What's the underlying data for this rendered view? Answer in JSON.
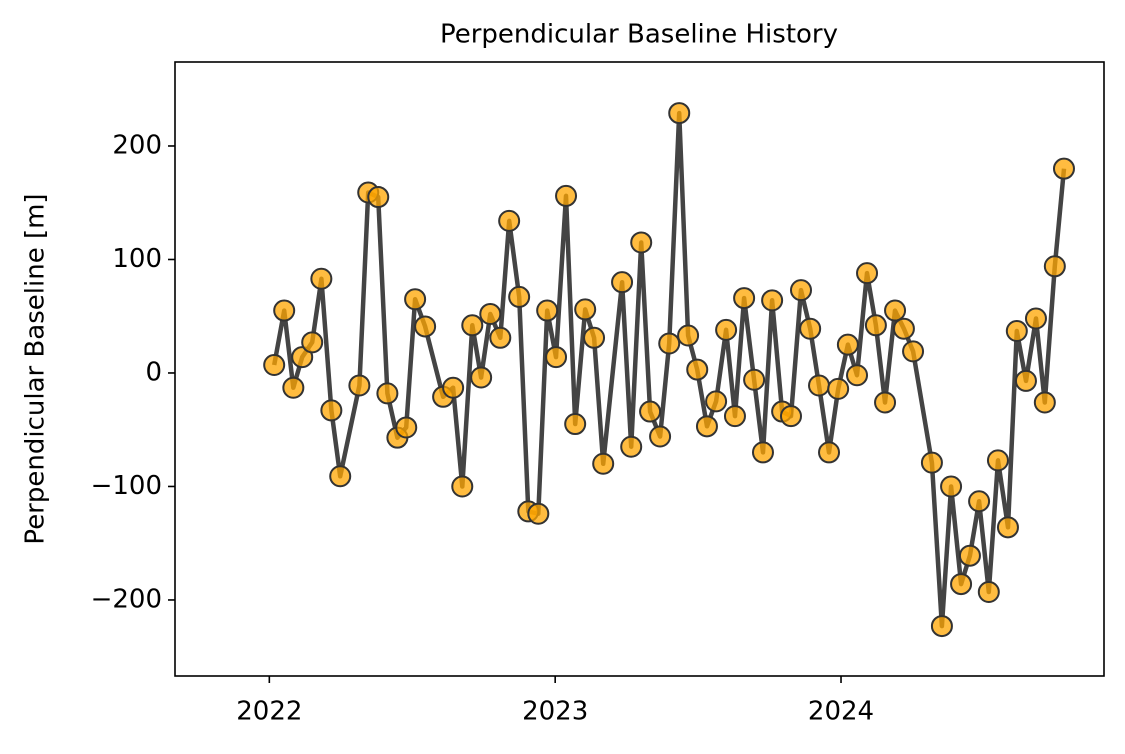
{
  "chart_data": {
    "type": "line",
    "title": "Perpendicular Baseline History",
    "ylabel": "Perpendicular Baseline [m]",
    "x": [
      2022.017,
      2022.052,
      2022.084,
      2022.115,
      2022.15,
      2022.182,
      2022.217,
      2022.248,
      2022.315,
      2022.346,
      2022.381,
      2022.413,
      2022.448,
      2022.479,
      2022.51,
      2022.545,
      2022.608,
      2022.643,
      2022.675,
      2022.71,
      2022.741,
      2022.773,
      2022.808,
      2022.839,
      2022.874,
      2022.906,
      2022.941,
      2022.972,
      2023.003,
      2023.038,
      2023.07,
      2023.105,
      2023.136,
      2023.168,
      2023.234,
      2023.266,
      2023.301,
      2023.332,
      2023.367,
      2023.399,
      2023.434,
      2023.465,
      2023.497,
      2023.531,
      2023.563,
      2023.598,
      2023.629,
      2023.661,
      2023.696,
      2023.727,
      2023.759,
      2023.794,
      2023.825,
      2023.86,
      2023.892,
      2023.923,
      2023.958,
      2023.99,
      2024.024,
      2024.056,
      2024.091,
      2024.122,
      2024.154,
      2024.189,
      2024.22,
      2024.252,
      2024.318,
      2024.353,
      2024.385,
      2024.42,
      2024.451,
      2024.483,
      2024.517,
      2024.549,
      2024.584,
      2024.615,
      2024.647,
      2024.682,
      2024.713,
      2024.748,
      2024.78
    ],
    "values": [
      7,
      55,
      -13,
      14,
      27,
      83,
      -33,
      -91,
      -11,
      159,
      155,
      -18,
      -57,
      -48,
      65,
      41,
      -21,
      -13,
      -100,
      42,
      -4,
      52,
      31,
      134,
      67,
      -122,
      -124,
      55,
      14,
      156,
      -45,
      56,
      31,
      -80,
      80,
      -65,
      115,
      -34,
      -56,
      26,
      229,
      33,
      3,
      -47,
      -25,
      38,
      -38,
      66,
      -6,
      -70,
      64,
      -34,
      -38,
      73,
      39,
      -11,
      -70,
      -14,
      25,
      -2,
      88,
      42,
      -26,
      55,
      39,
      19,
      -79,
      -223,
      -100,
      -186,
      -161,
      -113,
      -193,
      -77,
      -136,
      37,
      -7,
      48,
      -26,
      94,
      180
    ],
    "color": "#444444",
    "marker_color": "#ffa500",
    "xlim": [
      2021.67,
      2024.92
    ],
    "xticks": [
      2022,
      2023,
      2024
    ],
    "ylim": [
      -267,
      274
    ],
    "yticks": [
      {
        "value": -200,
        "label": "−200"
      },
      {
        "value": -100,
        "label": "−100"
      },
      0,
      100,
      200
    ],
    "grid": false
  }
}
